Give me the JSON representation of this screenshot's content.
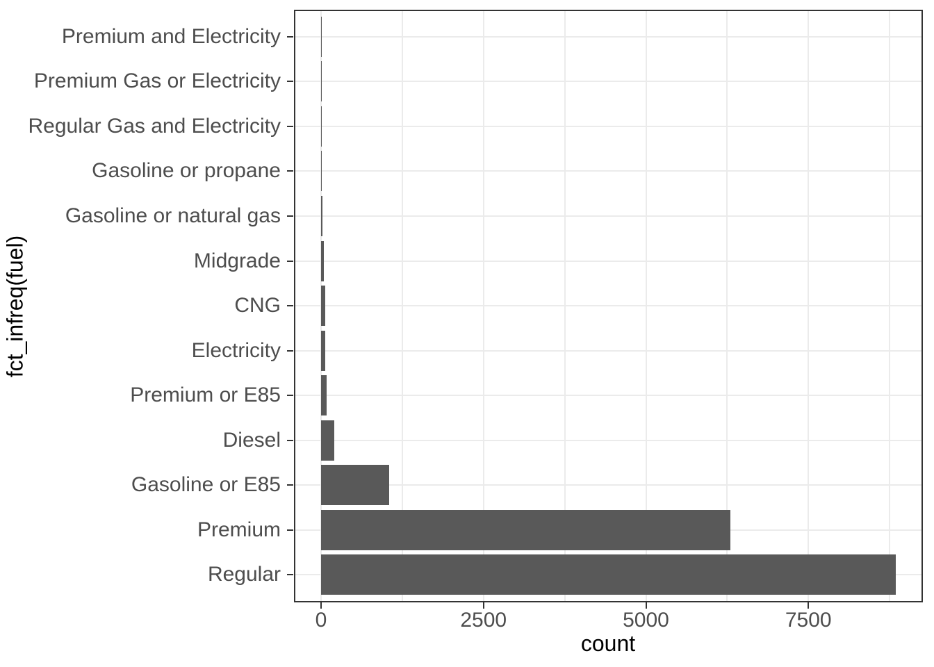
{
  "chart_data": {
    "type": "bar",
    "orientation": "horizontal",
    "title": "",
    "xlabel": "count",
    "ylabel": "fct_infreq(fuel)",
    "categories_top_to_bottom": [
      "Premium and Electricity",
      "Premium Gas or Electricity",
      "Regular Gas and Electricity",
      "Gasoline or propane",
      "Gasoline or natural gas",
      "Midgrade",
      "CNG",
      "Electricity",
      "Premium or E85",
      "Diesel",
      "Gasoline or E85",
      "Premium",
      "Regular"
    ],
    "values": [
      2,
      8,
      10,
      12,
      25,
      45,
      60,
      65,
      85,
      200,
      1050,
      6300,
      8840
    ],
    "x_ticks": [
      0,
      2500,
      5000,
      7500
    ],
    "x_minor_gridlines": [
      1250,
      3750,
      6250,
      8750
    ],
    "xlim": [
      0,
      8840
    ],
    "grid": "major and minor vertical, major horizontal per category",
    "legend": "none",
    "style": "ggplot2 theme_bw, grey35 bars on white panel with black border"
  },
  "colors": {
    "bar_fill": "#595959",
    "gridline": "#EBEBEB",
    "panel_border": "#333333",
    "tick_mark": "#333333",
    "tick_label": "#4D4D4D",
    "axis_title": "#000000",
    "background": "#FFFFFF"
  }
}
